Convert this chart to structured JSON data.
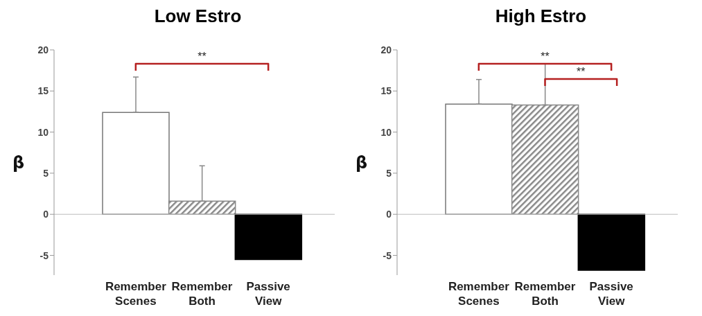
{
  "chart_data": [
    {
      "type": "bar",
      "title": "Low Estro",
      "ylabel": "β",
      "categories": [
        "Remember Scenes",
        "Remember Both",
        "Passive View"
      ],
      "values": [
        12.4,
        1.6,
        -5.5
      ],
      "colors": [
        "#ffffff",
        "#888888",
        "#000000"
      ],
      "errors": [
        [
          12.4,
          16.7
        ],
        [
          1.6,
          5.9
        ],
        null
      ],
      "ylim": [
        -7.4,
        20
      ],
      "yticks": [
        -5,
        0,
        5,
        10,
        15,
        20
      ],
      "annotations": [
        "**"
      ]
    },
    {
      "type": "bar",
      "title": "High Estro",
      "ylabel": "β",
      "categories": [
        "Remember Scenes",
        "Remember Both",
        "Passive View"
      ],
      "values": [
        13.4,
        13.3,
        -6.8
      ],
      "colors": [
        "#ffffff",
        "#888888",
        "#000000"
      ],
      "errors": [
        [
          13.4,
          16.4
        ],
        [
          13.3,
          18.3
        ],
        null
      ],
      "ylim": [
        -7.4,
        20
      ],
      "yticks": [
        -5,
        0,
        5,
        10,
        15,
        20
      ],
      "annotations": [
        "**",
        "**"
      ]
    }
  ]
}
